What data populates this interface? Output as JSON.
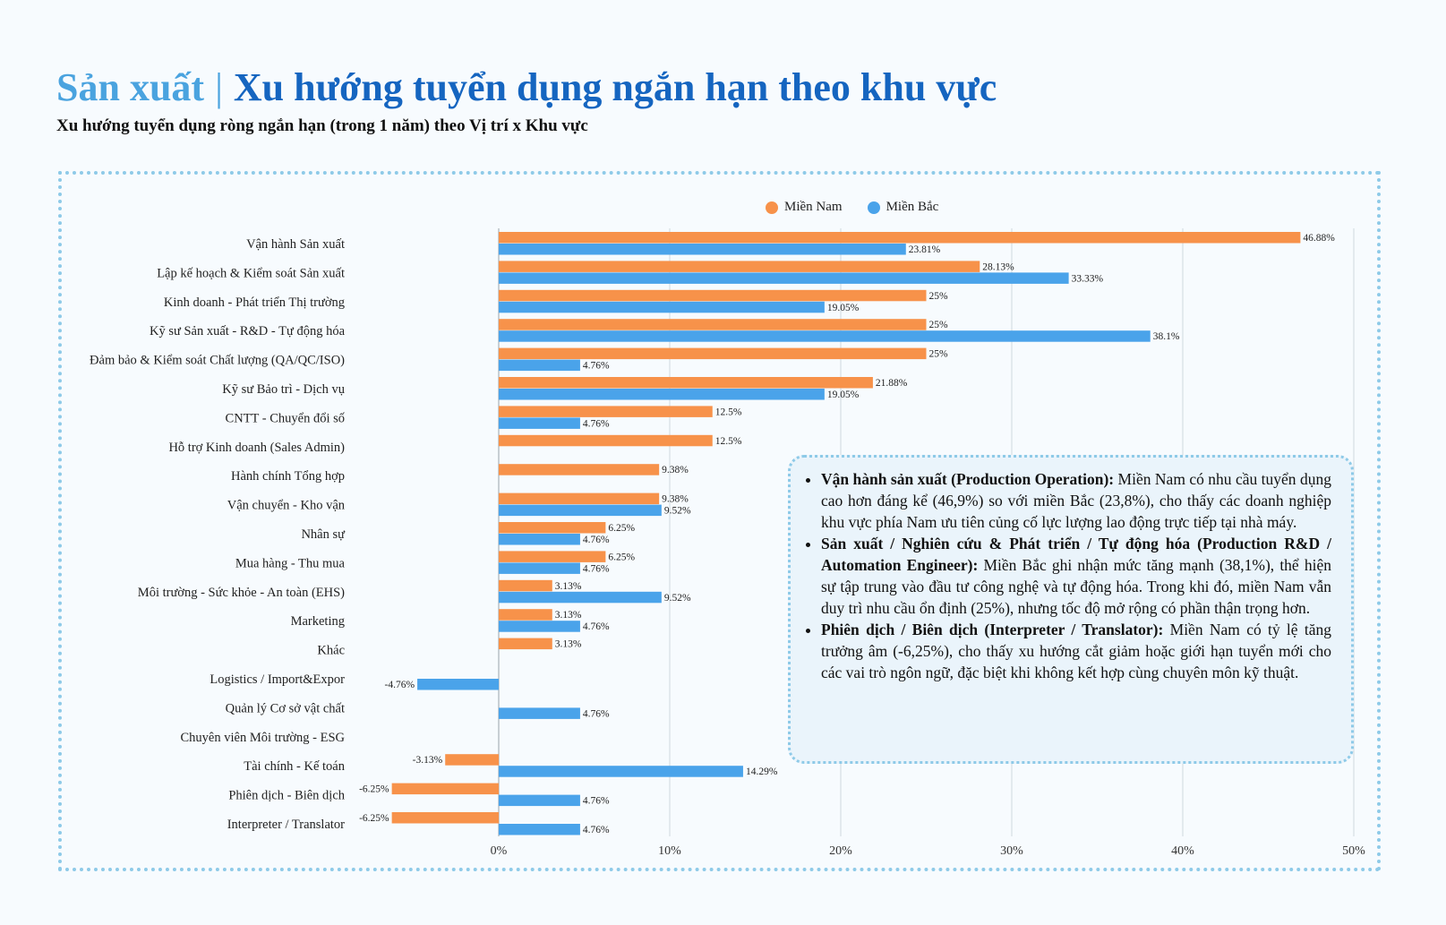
{
  "header": {
    "section": "Sản xuất",
    "separator": "|",
    "title": "Xu hướng tuyển dụng ngắn hạn theo khu vực",
    "subtitle": "Xu hướng tuyển dụng ròng ngắn hạn (trong 1 năm) theo Vị trí x Khu vực"
  },
  "colors": {
    "mien_nam": "#f7924a",
    "mien_bac": "#4aa3ea",
    "grid": "#cfd8df",
    "axis": "#9aa3aa"
  },
  "chart_data": {
    "type": "bar",
    "orientation": "horizontal",
    "xlim": [
      -10,
      50
    ],
    "x_ticks": [
      "0%",
      "10%",
      "20%",
      "30%",
      "40%",
      "50%"
    ],
    "x_tick_values": [
      0,
      10,
      20,
      30,
      40,
      50
    ],
    "legend_position": "top",
    "grid": true,
    "categories": [
      "Vận hành Sản xuất",
      "Lập kế hoạch & Kiểm soát Sản xuất",
      "Kinh doanh - Phát triển Thị trường",
      "Kỹ sư Sản xuất - R&D - Tự động hóa",
      "Đảm bảo & Kiểm soát Chất lượng (QA/QC/ISO)",
      "Kỹ sư Bảo trì - Dịch vụ",
      "CNTT - Chuyển đổi số",
      "Hỗ trợ Kinh doanh (Sales Admin)",
      "Hành chính Tổng hợp",
      "Vận chuyển - Kho vận",
      "Nhân sự",
      "Mua hàng - Thu mua",
      "Môi trường - Sức khỏe - An toàn (EHS)",
      "Marketing",
      "Khác",
      "Logistics / Import&Expor",
      "Quản lý Cơ sở vật chất",
      "Chuyên viên Môi trường - ESG",
      "Tài chính - Kế toán",
      "Phiên dịch - Biên dịch",
      "Interpreter / Translator"
    ],
    "series": [
      {
        "name": "Miền Nam",
        "values": [
          46.88,
          28.13,
          25,
          25,
          25,
          21.88,
          12.5,
          12.5,
          9.38,
          9.38,
          6.25,
          6.25,
          3.13,
          3.13,
          3.13,
          null,
          null,
          null,
          -3.13,
          -6.25,
          -6.25
        ],
        "labels": [
          "46.88%",
          "28.13%",
          "25%",
          "25%",
          "25%",
          "21.88%",
          "12.5%",
          "12.5%",
          "9.38%",
          "9.38%",
          "6.25%",
          "6.25%",
          "3.13%",
          "3.13%",
          "3.13%",
          "",
          "",
          "",
          "-3.13%",
          "-6.25%",
          "-6.25%"
        ]
      },
      {
        "name": "Miền Bắc",
        "values": [
          23.81,
          33.33,
          19.05,
          38.1,
          4.76,
          19.05,
          4.76,
          null,
          null,
          9.52,
          4.76,
          4.76,
          9.52,
          4.76,
          null,
          -4.76,
          4.76,
          null,
          14.29,
          4.76,
          4.76
        ],
        "labels": [
          "23.81%",
          "33.33%",
          "19.05%",
          "38.1%",
          "4.76%",
          "19.05%",
          "4.76%",
          "",
          "",
          "9.52%",
          "4.76%",
          "4.76%",
          "9.52%",
          "4.76%",
          "",
          "-4.76%",
          "4.76%",
          "",
          "14.29%",
          "4.76%",
          "4.76%"
        ]
      }
    ]
  },
  "notes": [
    {
      "heading": "Vận hành sản xuất (Production Operation):",
      "text": " Miền Nam có nhu cầu tuyển dụng cao hơn đáng kể (46,9%) so với miền Bắc (23,8%), cho thấy các doanh nghiệp khu vực phía Nam ưu tiên củng cố lực lượng lao động trực tiếp tại nhà máy."
    },
    {
      "heading": "Sản xuất / Nghiên cứu & Phát triển / Tự động hóa (Production R&D / Automation Engineer):",
      "text": " Miền Bắc ghi nhận mức tăng mạnh (38,1%), thể hiện sự tập trung vào đầu tư công nghệ và tự động hóa. Trong khi đó, miền Nam vẫn duy trì nhu cầu ổn định (25%), nhưng tốc độ mở rộng có phần thận trọng hơn."
    },
    {
      "heading": "Phiên dịch / Biên dịch (Interpreter / Translator):",
      "text": " Miền Nam có tỷ lệ tăng trưởng âm (-6,25%), cho thấy xu hướng cắt giảm hoặc giới hạn tuyển mới cho các vai trò ngôn ngữ, đặc biệt khi không kết hợp cùng chuyên môn kỹ thuật."
    }
  ]
}
